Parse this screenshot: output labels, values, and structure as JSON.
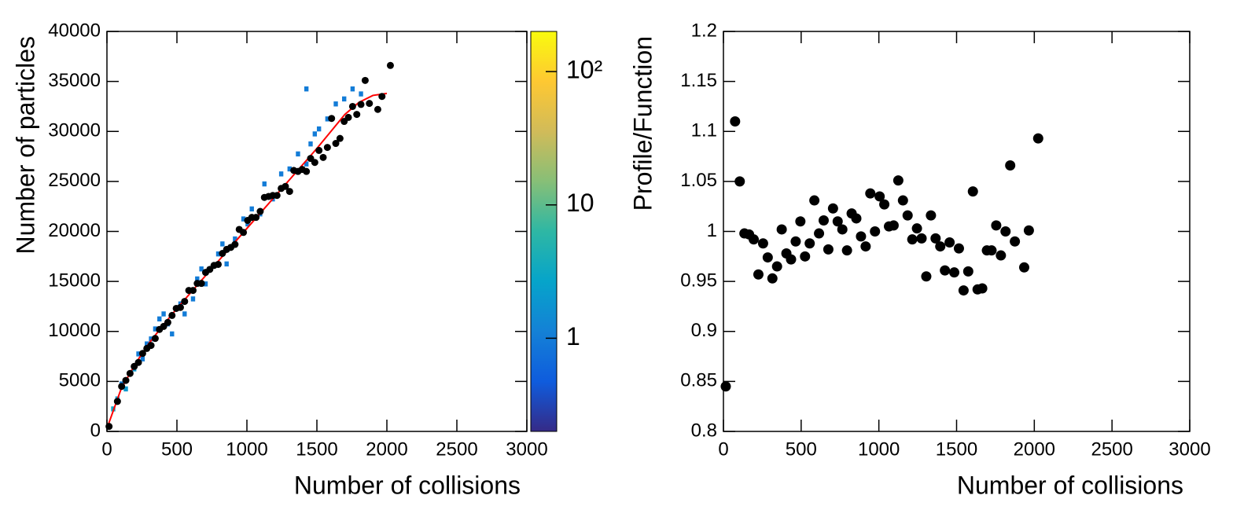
{
  "chart_data": [
    {
      "type": "heatmap",
      "xlabel": "Number of collisions",
      "ylabel": "Number of particles",
      "xlim": [
        0,
        3000
      ],
      "ylim": [
        0,
        40000
      ],
      "xticks": [
        0,
        500,
        1000,
        1500,
        2000,
        2500,
        3000
      ],
      "yticks": [
        0,
        5000,
        10000,
        15000,
        20000,
        25000,
        30000,
        35000,
        40000
      ],
      "zlim": [
        0.2,
        200
      ],
      "zlog": true,
      "zticks": [
        1,
        10,
        {
          "value": 100,
          "label": "10²"
        }
      ],
      "cells": {
        "x": [
          45,
          75,
          105,
          135,
          165,
          195,
          225,
          255,
          285,
          315,
          345,
          375,
          405,
          435,
          465,
          525,
          555,
          615,
          645,
          675,
          705,
          795,
          825,
          855,
          915,
          975,
          1005,
          1035,
          1095,
          1125,
          1185,
          1245,
          1305,
          1365,
          1425,
          1455,
          1485,
          1515,
          1575,
          1635,
          1695,
          1755,
          1815,
          1425
        ],
        "y": [
          2250,
          3250,
          4750,
          4250,
          5750,
          6250,
          7750,
          7250,
          8750,
          9250,
          10250,
          11250,
          11750,
          10750,
          9750,
          12750,
          11750,
          13250,
          15250,
          16250,
          14750,
          17750,
          18750,
          16750,
          19250,
          21250,
          20750,
          22250,
          21750,
          24750,
          23250,
          25750,
          26250,
          27750,
          26750,
          28750,
          29750,
          30250,
          31250,
          32750,
          33250,
          34250,
          33750,
          34250
        ],
        "values": [
          3,
          2,
          1,
          2,
          1,
          2,
          1,
          1,
          1,
          1,
          1,
          1,
          1,
          1,
          1,
          1,
          1,
          1,
          1,
          1,
          1,
          1,
          1,
          1,
          1,
          1,
          1,
          1,
          1,
          1,
          1,
          1,
          1,
          1,
          1,
          1,
          1,
          1,
          1,
          1,
          1,
          1,
          1,
          1
        ]
      },
      "profile": {
        "color": "#000000",
        "x": [
          15,
          75,
          105,
          135,
          165,
          195,
          225,
          255,
          285,
          315,
          345,
          375,
          405,
          435,
          465,
          495,
          525,
          555,
          585,
          615,
          645,
          675,
          705,
          735,
          765,
          795,
          825,
          855,
          885,
          915,
          945,
          975,
          1005,
          1035,
          1065,
          1095,
          1125,
          1155,
          1185,
          1215,
          1245,
          1275,
          1305,
          1335,
          1365,
          1395,
          1425,
          1455,
          1485,
          1515,
          1545,
          1575,
          1605,
          1635,
          1665,
          1695,
          1725,
          1755,
          1785,
          1815,
          1845,
          1875,
          1935,
          1965,
          2025
        ],
        "values": [
          500,
          3000,
          4500,
          5100,
          5800,
          6500,
          6900,
          7800,
          8300,
          8600,
          9300,
          10200,
          10500,
          10900,
          11600,
          12300,
          12400,
          13000,
          14100,
          14100,
          14800,
          14800,
          15900,
          16200,
          16600,
          16700,
          17800,
          18200,
          18400,
          18700,
          20200,
          19900,
          21100,
          21400,
          21400,
          22000,
          23400,
          23500,
          23600,
          23600,
          24300,
          24500,
          24000,
          26100,
          26000,
          26200,
          26000,
          27300,
          26900,
          28100,
          27400,
          28400,
          31300,
          28800,
          29300,
          31000,
          31400,
          32500,
          31700,
          32700,
          35100,
          32800,
          32200,
          33500,
          36600
        ]
      },
      "fit": {
        "color": "#ff0000",
        "x": [
          0,
          100,
          200,
          300,
          400,
          500,
          600,
          700,
          800,
          900,
          1000,
          1100,
          1200,
          1300,
          1400,
          1500,
          1600,
          1700,
          1800,
          1900,
          2000
        ],
        "values": [
          300,
          4200,
          6700,
          8800,
          10600,
          12300,
          13900,
          15500,
          17100,
          18700,
          20300,
          21900,
          23500,
          25100,
          26700,
          28300,
          30000,
          31700,
          32900,
          33600,
          33800
        ]
      }
    },
    {
      "type": "scatter",
      "xlabel": "Number of collisions",
      "ylabel": "Profile/Function",
      "xlim": [
        0,
        3000
      ],
      "ylim": [
        0.8,
        1.2
      ],
      "xticks": [
        0,
        500,
        1000,
        1500,
        2000,
        2500,
        3000
      ],
      "yticks": [
        0.8,
        0.85,
        0.9,
        0.95,
        1,
        1.05,
        1.1,
        1.15,
        1.2
      ],
      "color": "#000000",
      "x": [
        15,
        75,
        105,
        135,
        165,
        195,
        225,
        255,
        285,
        315,
        345,
        375,
        405,
        435,
        465,
        495,
        525,
        555,
        585,
        615,
        645,
        675,
        705,
        735,
        765,
        795,
        825,
        855,
        885,
        915,
        945,
        975,
        1005,
        1035,
        1065,
        1095,
        1125,
        1155,
        1185,
        1215,
        1245,
        1275,
        1305,
        1335,
        1365,
        1395,
        1425,
        1455,
        1485,
        1515,
        1545,
        1575,
        1605,
        1635,
        1665,
        1695,
        1725,
        1755,
        1785,
        1815,
        1845,
        1875,
        1935,
        1965,
        2025
      ],
      "values": [
        0.845,
        1.11,
        1.05,
        0.998,
        0.997,
        0.992,
        0.957,
        0.988,
        0.974,
        0.953,
        0.965,
        1.002,
        0.978,
        0.972,
        0.99,
        1.01,
        0.975,
        0.988,
        1.031,
        0.998,
        1.011,
        0.982,
        1.023,
        1.01,
        1.002,
        0.981,
        1.018,
        1.013,
        0.995,
        0.985,
        1.038,
        1.0,
        1.035,
        1.027,
        1.005,
        1.006,
        1.051,
        1.031,
        1.016,
        0.992,
        1.003,
        0.993,
        0.955,
        1.016,
        0.993,
        0.985,
        0.961,
        0.989,
        0.959,
        0.983,
        0.941,
        0.96,
        1.04,
        0.942,
        0.943,
        0.981,
        0.981,
        1.006,
        0.976,
        1.0,
        1.066,
        0.99,
        0.964,
        1.001,
        1.093
      ]
    }
  ]
}
